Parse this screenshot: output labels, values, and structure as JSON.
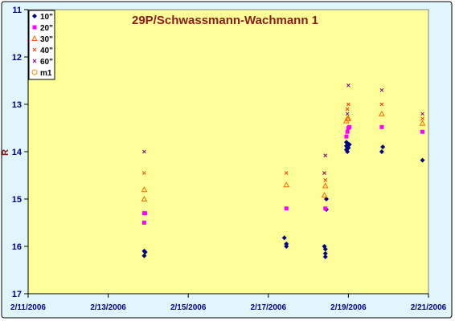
{
  "chart_data": {
    "type": "scatter",
    "title": "29P/Schwassmann-Wachmann 1",
    "xlabel": "",
    "ylabel": "R",
    "x_type": "date",
    "xlim": [
      "2006-02-11",
      "2006-02-21"
    ],
    "ylim": [
      11,
      17
    ],
    "y_inverted": true,
    "grid": false,
    "legend_position": "top-left",
    "x_ticks": [
      {
        "value": "2006-02-11",
        "label": "2/11/2006"
      },
      {
        "value": "2006-02-13",
        "label": "2/13/2006"
      },
      {
        "value": "2006-02-15",
        "label": "2/15/2006"
      },
      {
        "value": "2006-02-17",
        "label": "2/17/2006"
      },
      {
        "value": "2006-02-19",
        "label": "2/19/2006"
      },
      {
        "value": "2006-02-21",
        "label": "2/21/2006"
      }
    ],
    "y_ticks": [
      {
        "value": 11,
        "label": "11"
      },
      {
        "value": 12,
        "label": "12"
      },
      {
        "value": 13,
        "label": "13"
      },
      {
        "value": 14,
        "label": "14"
      },
      {
        "value": 15,
        "label": "15"
      },
      {
        "value": 16,
        "label": "16"
      },
      {
        "value": 17,
        "label": "17"
      }
    ],
    "colors": {
      "page_background": "#ffffff",
      "chart_area": "#dff7fb",
      "plot_area": "#ffff99",
      "title": "#8b1a1a",
      "axis_labels": "#00008b",
      "axis_line": "#000000"
    },
    "series": [
      {
        "name": "10\"",
        "marker": "diamond",
        "color": "#000080",
        "points": [
          {
            "x": "2006-02-13T21:36",
            "y": 16.1
          },
          {
            "x": "2006-02-13T22:12",
            "y": 16.12
          },
          {
            "x": "2006-02-13T21:36",
            "y": 16.2
          },
          {
            "x": "2006-02-17T09:36",
            "y": 15.82
          },
          {
            "x": "2006-02-17T10:48",
            "y": 15.95
          },
          {
            "x": "2006-02-17T10:48",
            "y": 16.0
          },
          {
            "x": "2006-02-18T09:36",
            "y": 16.0
          },
          {
            "x": "2006-02-18T10:12",
            "y": 16.06
          },
          {
            "x": "2006-02-18T10:12",
            "y": 16.15
          },
          {
            "x": "2006-02-18T10:12",
            "y": 16.22
          },
          {
            "x": "2006-02-18T10:48",
            "y": 15.0
          },
          {
            "x": "2006-02-18T10:48",
            "y": 15.22
          },
          {
            "x": "2006-02-18T22:48",
            "y": 13.8
          },
          {
            "x": "2006-02-18T23:24",
            "y": 13.82
          },
          {
            "x": "2006-02-18T22:48",
            "y": 13.88
          },
          {
            "x": "2006-02-18T23:24",
            "y": 13.92
          },
          {
            "x": "2006-02-18T22:48",
            "y": 13.96
          },
          {
            "x": "2006-02-18T23:24",
            "y": 14.0
          },
          {
            "x": "2006-02-19T00:00",
            "y": 13.92
          },
          {
            "x": "2006-02-19T00:36",
            "y": 13.85
          },
          {
            "x": "2006-02-19T20:00",
            "y": 14.0
          },
          {
            "x": "2006-02-19T20:36",
            "y": 13.9
          },
          {
            "x": "2006-02-20T20:24",
            "y": 14.18
          }
        ]
      },
      {
        "name": "20\"",
        "marker": "square",
        "color": "#ff00ff",
        "points": [
          {
            "x": "2006-02-13T21:36",
            "y": 15.3
          },
          {
            "x": "2006-02-13T22:12",
            "y": 15.3
          },
          {
            "x": "2006-02-13T21:36",
            "y": 15.5
          },
          {
            "x": "2006-02-17T10:48",
            "y": 15.2
          },
          {
            "x": "2006-02-18T10:12",
            "y": 15.2
          },
          {
            "x": "2006-02-18T22:48",
            "y": 13.68
          },
          {
            "x": "2006-02-18T23:24",
            "y": 13.58
          },
          {
            "x": "2006-02-19T00:00",
            "y": 13.5
          },
          {
            "x": "2006-02-19T00:36",
            "y": 13.48
          },
          {
            "x": "2006-02-19T20:00",
            "y": 13.48
          },
          {
            "x": "2006-02-20T20:24",
            "y": 13.58
          }
        ]
      },
      {
        "name": "30\"",
        "marker": "triangle",
        "color": "#ff6600",
        "points": [
          {
            "x": "2006-02-13T21:36",
            "y": 14.8
          },
          {
            "x": "2006-02-13T21:36",
            "y": 15.0
          },
          {
            "x": "2006-02-17T10:48",
            "y": 14.7
          },
          {
            "x": "2006-02-18T09:36",
            "y": 14.92
          },
          {
            "x": "2006-02-18T10:12",
            "y": 14.72
          },
          {
            "x": "2006-02-18T22:48",
            "y": 13.35
          },
          {
            "x": "2006-02-18T23:24",
            "y": 13.3
          },
          {
            "x": "2006-02-19T00:00",
            "y": 13.3
          },
          {
            "x": "2006-02-19T20:00",
            "y": 13.2
          },
          {
            "x": "2006-02-20T20:24",
            "y": 13.4
          }
        ]
      },
      {
        "name": "40\"",
        "marker": "x",
        "color": "#ff3300",
        "points": [
          {
            "x": "2006-02-13T21:36",
            "y": 14.45
          },
          {
            "x": "2006-02-17T10:48",
            "y": 14.45
          },
          {
            "x": "2006-02-18T09:36",
            "y": 14.45
          },
          {
            "x": "2006-02-18T10:12",
            "y": 14.6
          },
          {
            "x": "2006-02-18T23:24",
            "y": 13.1
          },
          {
            "x": "2006-02-19T00:00",
            "y": 13.0
          },
          {
            "x": "2006-02-19T20:00",
            "y": 13.0
          },
          {
            "x": "2006-02-20T20:24",
            "y": 13.3
          }
        ]
      },
      {
        "name": "60\"",
        "marker": "x",
        "color": "#800080",
        "points": [
          {
            "x": "2006-02-13T21:36",
            "y": 14.0
          },
          {
            "x": "2006-02-18T09:36",
            "y": 14.45
          },
          {
            "x": "2006-02-18T10:12",
            "y": 14.08
          },
          {
            "x": "2006-02-18T23:24",
            "y": 13.2
          },
          {
            "x": "2006-02-19T00:00",
            "y": 12.6
          },
          {
            "x": "2006-02-19T20:00",
            "y": 12.7
          },
          {
            "x": "2006-02-20T20:24",
            "y": 13.2
          }
        ]
      },
      {
        "name": "m1",
        "marker": "circle",
        "color": "#ff8c00",
        "points": []
      }
    ]
  }
}
